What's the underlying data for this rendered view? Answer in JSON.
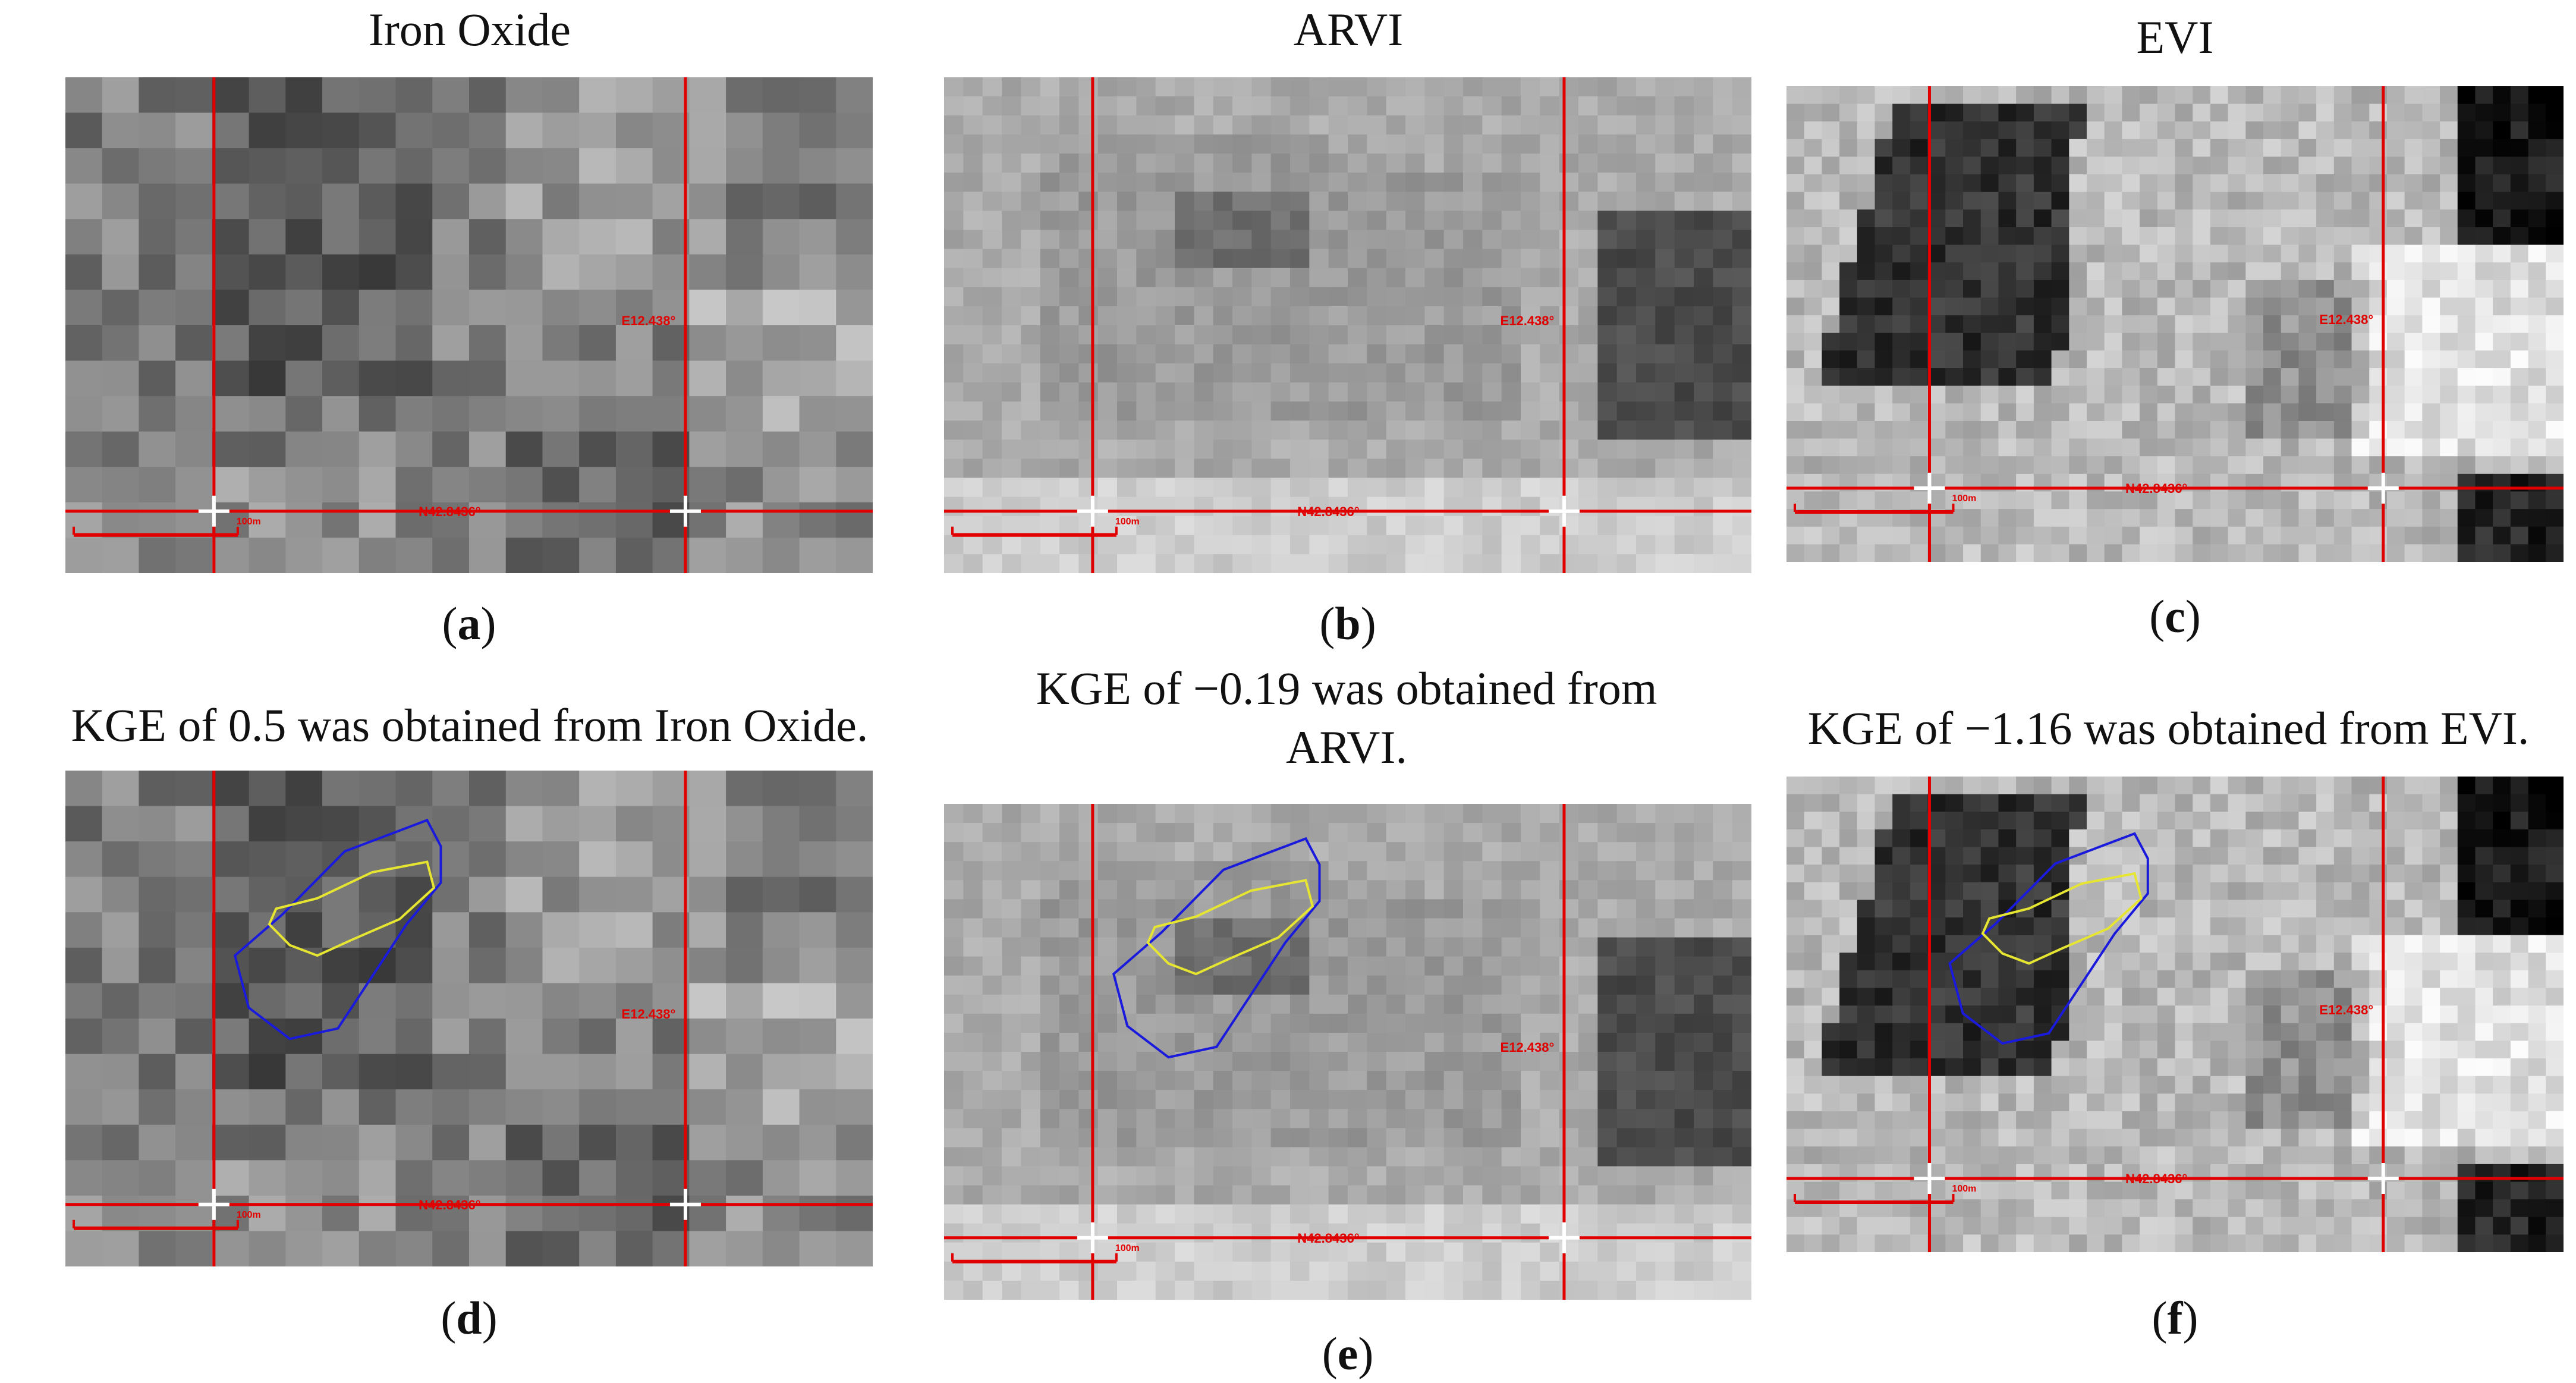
{
  "colors": {
    "grid_line": "#e10000",
    "cross_marker": "#ffffff",
    "outer_boundary": "#1a1adc",
    "inner_boundary": "#e6e632"
  },
  "panels": [
    {
      "id": "a",
      "title": "Iron Oxide",
      "letter": "a",
      "kind": "iron",
      "overlay": false,
      "east_label": "E12.438°",
      "north_label": "N42.8436°",
      "scale_label": "100m"
    },
    {
      "id": "b",
      "title": "ARVI",
      "letter": "b",
      "kind": "arvi",
      "overlay": false,
      "east_label": "E12.438°",
      "north_label": "N42.8436°",
      "scale_label": "100m"
    },
    {
      "id": "c",
      "title": "EVI",
      "letter": "c",
      "kind": "evi",
      "overlay": false,
      "east_label": "E12.438°",
      "north_label": "N42.8436°",
      "scale_label": "100m"
    },
    {
      "id": "d",
      "title": "KGE of 0.5 was obtained from Iron Oxide.",
      "letter": "d",
      "kind": "iron",
      "overlay": true,
      "east_label": "E12.438°",
      "north_label": "N42.8436°",
      "scale_label": "100m"
    },
    {
      "id": "e",
      "title": "KGE of −0.19 was obtained from ARVI.",
      "letter": "e",
      "kind": "arvi",
      "overlay": true,
      "east_label": "E12.438°",
      "north_label": "N42.8436°",
      "scale_label": "100m"
    },
    {
      "id": "f",
      "title": "KGE of −1.16 was obtained from EVI.",
      "letter": "f",
      "kind": "evi",
      "overlay": true,
      "east_label": "E12.438°",
      "north_label": "N42.8436°",
      "scale_label": "100m"
    }
  ]
}
